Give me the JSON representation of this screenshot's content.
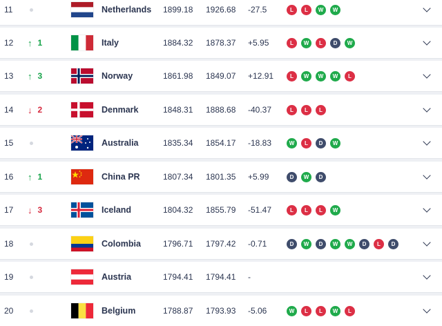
{
  "rows": [
    {
      "rank": "11",
      "move": "same",
      "change": "",
      "team": "Netherlands",
      "flag": "netherlands",
      "points": "1899.18",
      "previous": "1926.68",
      "diff": "-27.5",
      "form": [
        "L",
        "L",
        "W",
        "W"
      ]
    },
    {
      "rank": "12",
      "move": "up",
      "change": "1",
      "team": "Italy",
      "flag": "italy",
      "points": "1884.32",
      "previous": "1878.37",
      "diff": "+5.95",
      "form": [
        "L",
        "W",
        "L",
        "D",
        "W"
      ]
    },
    {
      "rank": "13",
      "move": "up",
      "change": "3",
      "team": "Norway",
      "flag": "norway",
      "points": "1861.98",
      "previous": "1849.07",
      "diff": "+12.91",
      "form": [
        "L",
        "W",
        "W",
        "W",
        "L"
      ]
    },
    {
      "rank": "14",
      "move": "down",
      "change": "2",
      "team": "Denmark",
      "flag": "denmark",
      "points": "1848.31",
      "previous": "1888.68",
      "diff": "-40.37",
      "form": [
        "L",
        "L",
        "L"
      ]
    },
    {
      "rank": "15",
      "move": "same",
      "change": "",
      "team": "Australia",
      "flag": "australia",
      "points": "1835.34",
      "previous": "1854.17",
      "diff": "-18.83",
      "form": [
        "W",
        "L",
        "D",
        "W"
      ]
    },
    {
      "rank": "16",
      "move": "up",
      "change": "1",
      "team": "China PR",
      "flag": "china",
      "points": "1807.34",
      "previous": "1801.35",
      "diff": "+5.99",
      "form": [
        "D",
        "W",
        "D"
      ]
    },
    {
      "rank": "17",
      "move": "down",
      "change": "3",
      "team": "Iceland",
      "flag": "iceland",
      "points": "1804.32",
      "previous": "1855.79",
      "diff": "-51.47",
      "form": [
        "L",
        "L",
        "L",
        "W"
      ]
    },
    {
      "rank": "18",
      "move": "same",
      "change": "",
      "team": "Colombia",
      "flag": "colombia",
      "points": "1796.71",
      "previous": "1797.42",
      "diff": "-0.71",
      "form": [
        "D",
        "W",
        "D",
        "W",
        "W",
        "D",
        "L",
        "D"
      ]
    },
    {
      "rank": "19",
      "move": "same",
      "change": "",
      "team": "Austria",
      "flag": "austria",
      "points": "1794.41",
      "previous": "1794.41",
      "diff": "-",
      "form": []
    },
    {
      "rank": "20",
      "move": "same",
      "change": "",
      "team": "Belgium",
      "flag": "belgium",
      "points": "1788.87",
      "previous": "1793.93",
      "diff": "-5.06",
      "form": [
        "W",
        "L",
        "L",
        "W",
        "L"
      ]
    }
  ],
  "colors": {
    "win": "#1faa4b",
    "loss": "#dc2f45",
    "draw": "#3f4c6b",
    "up": "#17a34a",
    "down": "#d6293e"
  },
  "icons": {
    "up": "arrow-up-icon",
    "down": "arrow-down-icon",
    "same": "unchanged-dot-icon",
    "expand": "chevron-down-icon"
  }
}
